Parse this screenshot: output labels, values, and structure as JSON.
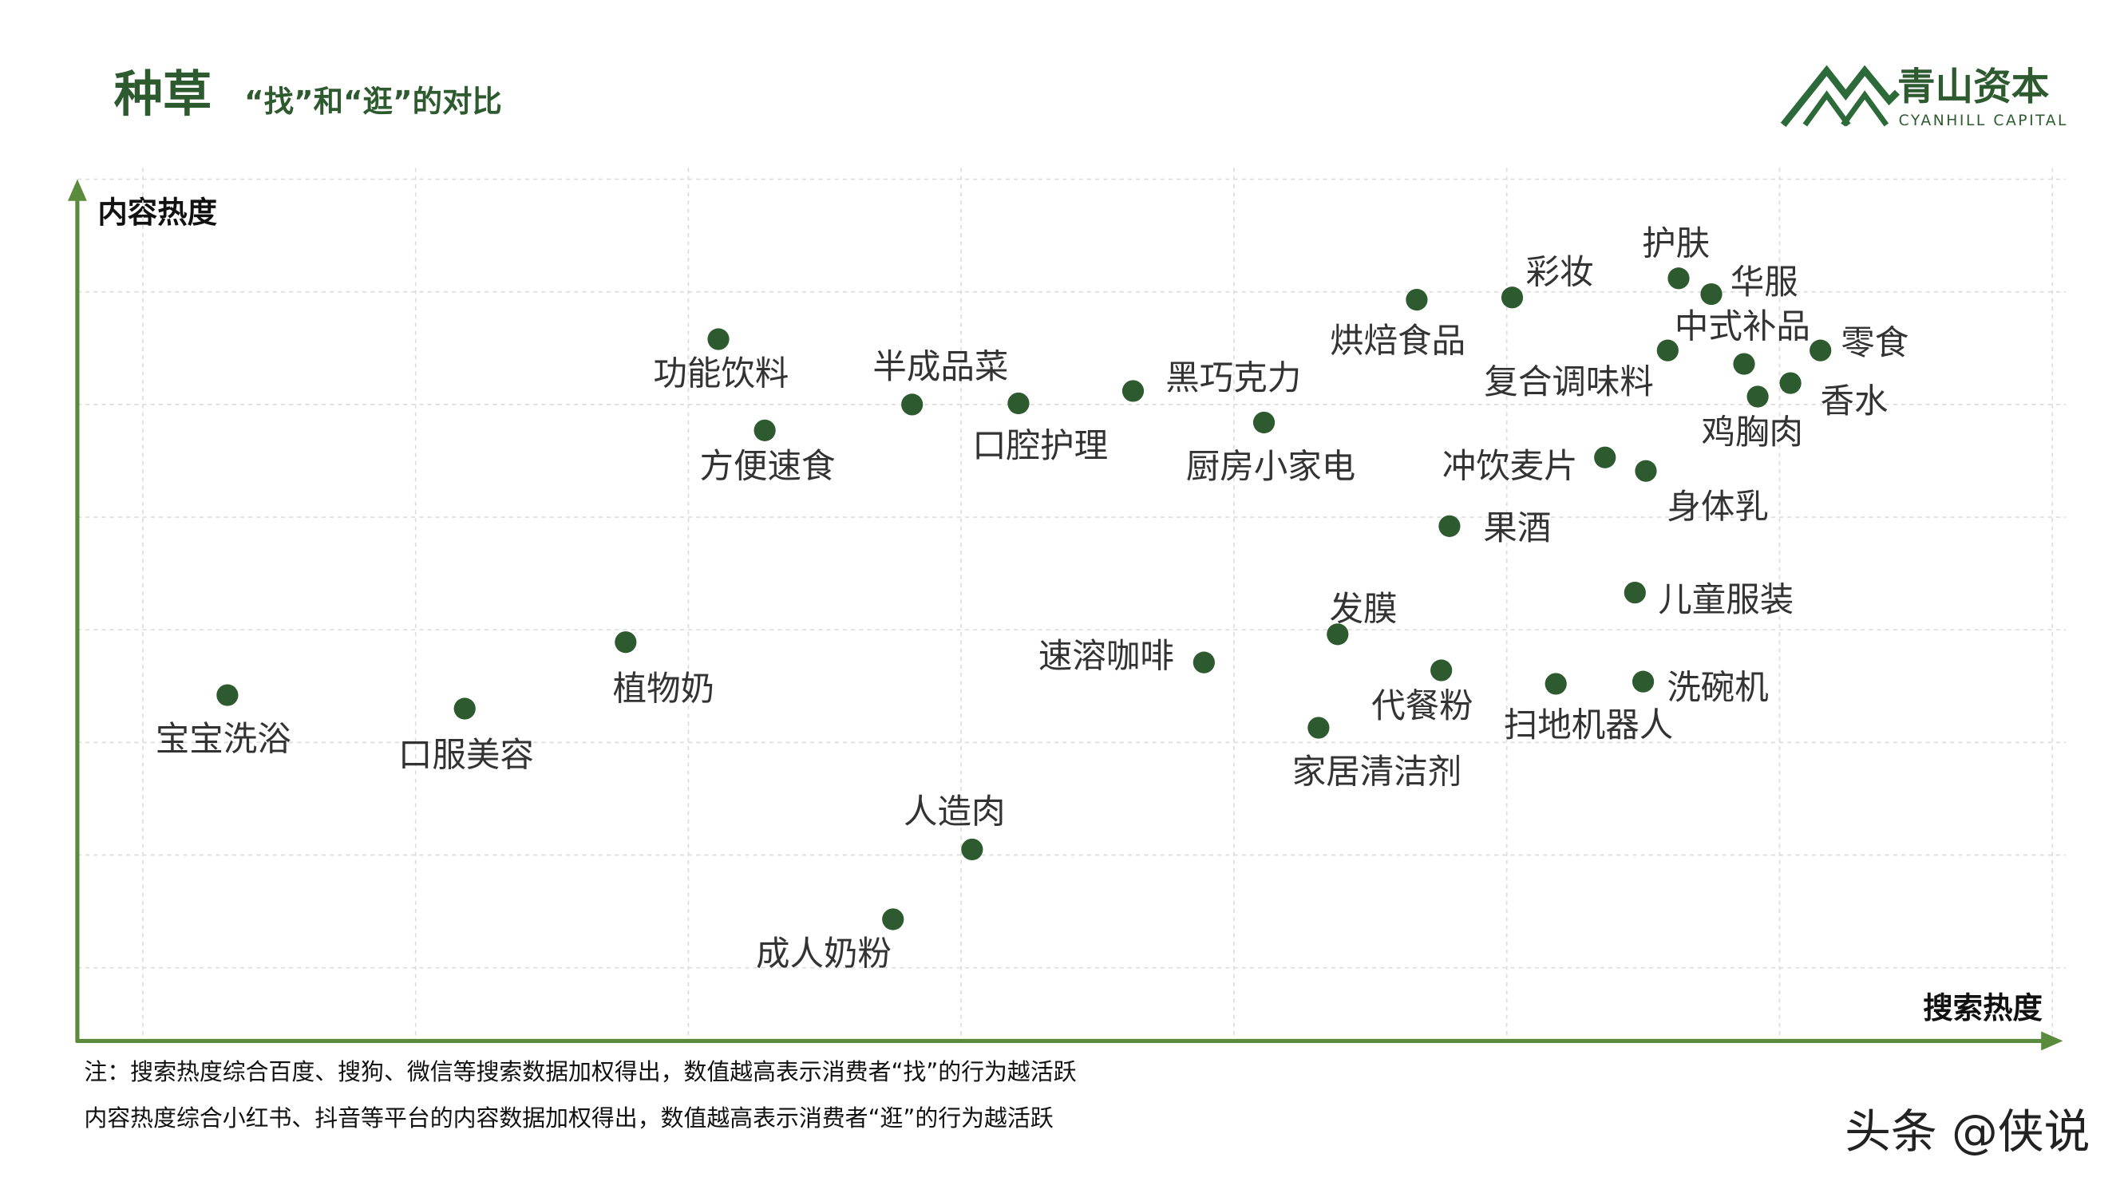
{
  "chart_data": {
    "type": "scatter",
    "title": "种草",
    "subtitle": "“找”和“逛”的对比",
    "brand": "青山资本",
    "brand_en": "CYANHILL CAPITAL",
    "y_label": "内容热度",
    "x_label": "搜索热度",
    "notes": [
      "注：搜索热度综合百度、搜狗、微信等搜索数据加权得出，数值越高表示消费者“找”的行为越活跃",
      "内容热度综合小红书、抖音等平台的内容数据加权得出，数值越高表示消费者“逛”的行为越活跃"
    ],
    "watermark": "头条 @侠说",
    "color": "#2d5a2f",
    "xlim": [
      -0.24,
      7.05
    ],
    "ylim": [
      -0.65,
      7.1
    ],
    "xticks": [
      0,
      1,
      2,
      3,
      4,
      5,
      6,
      7
    ],
    "yticks": [
      0,
      1,
      2,
      3,
      4,
      5,
      6,
      7
    ],
    "grid": true,
    "labels": [
      "宝宝洗浴",
      "口服美容",
      "植物奶",
      "功能饮料",
      "方便速食",
      "半成品菜",
      "口腔护理",
      "黑巧克力",
      "厨房小家电",
      "烘焙食品",
      "彩妆",
      "护肤",
      "华服",
      "中式补品",
      "复合调味料",
      "零食",
      "香水",
      "鸡胸肉",
      "冲饮麦片",
      "身体乳",
      "果酒",
      "儿童服装",
      "发膜",
      "速溶咖啡",
      "代餐粉",
      "扫地机器人",
      "洗碗机",
      "家居清洁剂",
      "人造肉",
      "成人奶粉"
    ],
    "x": [
      0.31,
      1.18,
      1.77,
      2.11,
      2.28,
      2.82,
      3.21,
      3.63,
      4.11,
      4.67,
      5.02,
      5.63,
      5.75,
      5.59,
      5.87,
      6.15,
      6.04,
      5.92,
      5.36,
      5.51,
      4.79,
      5.47,
      4.38,
      3.89,
      4.76,
      5.18,
      5.5,
      4.31,
      3.04,
      2.75
    ],
    "values": [
      2.42,
      2.3,
      2.89,
      5.58,
      4.77,
      5.0,
      5.01,
      5.12,
      4.84,
      5.93,
      5.95,
      6.12,
      5.98,
      5.48,
      5.36,
      5.48,
      5.19,
      5.07,
      4.53,
      4.41,
      3.92,
      3.33,
      2.96,
      2.71,
      2.64,
      2.52,
      2.54,
      2.13,
      1.05,
      0.43
    ]
  }
}
